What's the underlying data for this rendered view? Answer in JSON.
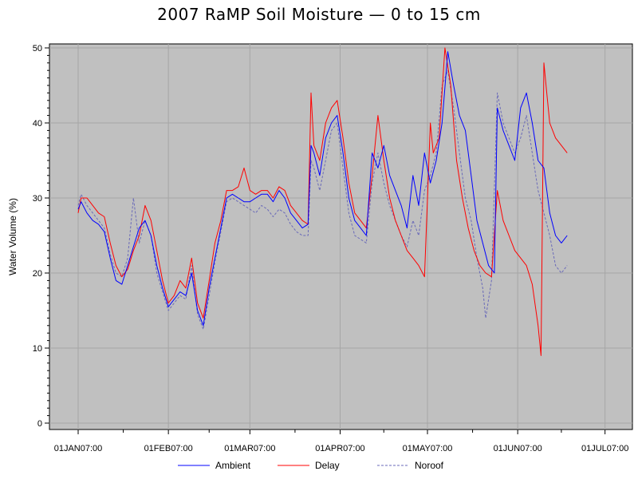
{
  "chart_data": {
    "type": "line",
    "title": "2007 RaMP Soil Moisture — 0 to 15 cm",
    "xlabel": "",
    "ylabel": "Water Volume (%)",
    "xlim": [
      "2007-01-01",
      "2007-07-01"
    ],
    "ylim": [
      0,
      50
    ],
    "yticks": [
      0,
      10,
      20,
      30,
      40,
      50
    ],
    "xticks": [
      "2007-01-01",
      "2007-02-01",
      "2007-03-01",
      "2007-04-01",
      "2007-05-01",
      "2007-06-01",
      "2007-07-01"
    ],
    "xtick_labels": [
      "01JAN07:00",
      "01FEB07:00",
      "01MAR07:00",
      "01APR07:00",
      "01MAY07:00",
      "01JUN07:00",
      "01JUL07:00"
    ],
    "plot_background": "#c0c0c0",
    "grid": true,
    "legend_position": "bottom",
    "series": [
      {
        "name": "Ambient",
        "color": "#0000ff",
        "style": "solid",
        "x": [
          "2007-01-01",
          "2007-01-02",
          "2007-01-04",
          "2007-01-06",
          "2007-01-08",
          "2007-01-10",
          "2007-01-12",
          "2007-01-14",
          "2007-01-16",
          "2007-01-18",
          "2007-01-20",
          "2007-01-22",
          "2007-01-24",
          "2007-01-26",
          "2007-01-28",
          "2007-01-30",
          "2007-02-01",
          "2007-02-03",
          "2007-02-05",
          "2007-02-07",
          "2007-02-09",
          "2007-02-11",
          "2007-02-13",
          "2007-02-15",
          "2007-02-17",
          "2007-02-19",
          "2007-02-21",
          "2007-02-23",
          "2007-02-25",
          "2007-02-27",
          "2007-03-01",
          "2007-03-03",
          "2007-03-05",
          "2007-03-07",
          "2007-03-09",
          "2007-03-11",
          "2007-03-13",
          "2007-03-15",
          "2007-03-17",
          "2007-03-19",
          "2007-03-21",
          "2007-03-22",
          "2007-03-23",
          "2007-03-25",
          "2007-03-27",
          "2007-03-29",
          "2007-03-31",
          "2007-04-02",
          "2007-04-04",
          "2007-04-06",
          "2007-04-08",
          "2007-04-10",
          "2007-04-12",
          "2007-04-14",
          "2007-04-16",
          "2007-04-18",
          "2007-04-20",
          "2007-04-22",
          "2007-04-24",
          "2007-04-26",
          "2007-04-28",
          "2007-04-30",
          "2007-05-02",
          "2007-05-04",
          "2007-05-06",
          "2007-05-08",
          "2007-05-10",
          "2007-05-12",
          "2007-05-14",
          "2007-05-16",
          "2007-05-18",
          "2007-05-20",
          "2007-05-22",
          "2007-05-24",
          "2007-05-25",
          "2007-05-27",
          "2007-05-29",
          "2007-05-31",
          "2007-06-02",
          "2007-06-04",
          "2007-06-06",
          "2007-06-08",
          "2007-06-10",
          "2007-06-12",
          "2007-06-14",
          "2007-06-16",
          "2007-06-18"
        ],
        "values": [
          28.5,
          29.5,
          28.0,
          27.0,
          26.5,
          25.5,
          22.0,
          19.0,
          18.5,
          21.0,
          23.5,
          26.0,
          27.0,
          25.0,
          21.0,
          18.0,
          15.5,
          16.5,
          17.5,
          17.0,
          20.0,
          15.0,
          13.0,
          18.0,
          22.0,
          26.0,
          30.0,
          30.5,
          30.0,
          29.5,
          29.5,
          30.0,
          30.5,
          30.5,
          29.5,
          31.0,
          30.0,
          28.0,
          27.0,
          26.0,
          26.5,
          37.0,
          36.0,
          33.0,
          38.0,
          40.0,
          41.0,
          36.0,
          30.0,
          27.0,
          26.0,
          25.0,
          36.0,
          34.0,
          37.0,
          33.0,
          31.0,
          29.0,
          26.0,
          33.0,
          29.0,
          36.0,
          32.0,
          35.0,
          40.0,
          49.5,
          45.0,
          41.0,
          39.0,
          33.0,
          27.0,
          24.0,
          21.0,
          20.0,
          42.0,
          39.0,
          37.0,
          35.0,
          42.0,
          44.0,
          40.0,
          35.0,
          34.0,
          28.0,
          25.0,
          24.0,
          25.0
        ]
      },
      {
        "name": "Delay",
        "color": "#ff0000",
        "style": "solid",
        "x": [
          "2007-01-01",
          "2007-01-02",
          "2007-01-04",
          "2007-01-06",
          "2007-01-08",
          "2007-01-10",
          "2007-01-12",
          "2007-01-14",
          "2007-01-16",
          "2007-01-18",
          "2007-01-20",
          "2007-01-22",
          "2007-01-24",
          "2007-01-26",
          "2007-01-28",
          "2007-01-30",
          "2007-02-01",
          "2007-02-03",
          "2007-02-05",
          "2007-02-07",
          "2007-02-09",
          "2007-02-11",
          "2007-02-13",
          "2007-02-15",
          "2007-02-17",
          "2007-02-19",
          "2007-02-21",
          "2007-02-23",
          "2007-02-25",
          "2007-02-27",
          "2007-03-01",
          "2007-03-03",
          "2007-03-05",
          "2007-03-07",
          "2007-03-09",
          "2007-03-11",
          "2007-03-13",
          "2007-03-15",
          "2007-03-17",
          "2007-03-19",
          "2007-03-21",
          "2007-03-22",
          "2007-03-23",
          "2007-03-25",
          "2007-03-27",
          "2007-03-29",
          "2007-03-31",
          "2007-04-02",
          "2007-04-04",
          "2007-04-06",
          "2007-04-08",
          "2007-04-10",
          "2007-04-12",
          "2007-04-14",
          "2007-04-16",
          "2007-04-18",
          "2007-04-20",
          "2007-04-22",
          "2007-04-24",
          "2007-04-26",
          "2007-04-28",
          "2007-04-30",
          "2007-05-02",
          "2007-05-03",
          "2007-05-05",
          "2007-05-07",
          "2007-05-09",
          "2007-05-11",
          "2007-05-13",
          "2007-05-15",
          "2007-05-17",
          "2007-05-19",
          "2007-05-21",
          "2007-05-23",
          "2007-05-25",
          "2007-05-27",
          "2007-05-29",
          "2007-05-31",
          "2007-06-02",
          "2007-06-04",
          "2007-06-06",
          "2007-06-08",
          "2007-06-09",
          "2007-06-10",
          "2007-06-11",
          "2007-06-12",
          "2007-06-14",
          "2007-06-16",
          "2007-06-18"
        ],
        "values": [
          28.0,
          30.0,
          30.0,
          29.0,
          28.0,
          27.5,
          24.0,
          21.0,
          19.5,
          20.5,
          23.0,
          25.0,
          29.0,
          27.0,
          23.0,
          19.0,
          16.0,
          17.0,
          19.0,
          18.0,
          22.0,
          16.0,
          14.0,
          19.0,
          24.0,
          27.0,
          31.0,
          31.0,
          31.5,
          34.0,
          31.0,
          30.5,
          31.0,
          31.0,
          30.0,
          31.5,
          31.0,
          29.0,
          28.0,
          27.0,
          26.5,
          44.0,
          37.0,
          35.0,
          40.0,
          42.0,
          43.0,
          38.0,
          32.0,
          28.0,
          27.0,
          26.0,
          33.0,
          41.0,
          35.0,
          30.0,
          27.0,
          25.0,
          23.0,
          22.0,
          21.0,
          19.5,
          40.0,
          36.0,
          38.0,
          50.0,
          45.0,
          35.0,
          30.0,
          26.0,
          23.0,
          21.0,
          20.0,
          19.5,
          31.0,
          27.0,
          25.0,
          23.0,
          22.0,
          21.0,
          18.5,
          13.0,
          9.0,
          48.0,
          44.0,
          40.0,
          38.0,
          37.0,
          36.0
        ]
      },
      {
        "name": "Noroof",
        "color": "#6a6ab8",
        "style": "dashed",
        "x": [
          "2007-01-01",
          "2007-01-02",
          "2007-01-04",
          "2007-01-06",
          "2007-01-08",
          "2007-01-10",
          "2007-01-12",
          "2007-01-14",
          "2007-01-16",
          "2007-01-18",
          "2007-01-20",
          "2007-01-22",
          "2007-01-24",
          "2007-01-26",
          "2007-01-28",
          "2007-01-30",
          "2007-02-01",
          "2007-02-03",
          "2007-02-05",
          "2007-02-07",
          "2007-02-09",
          "2007-02-11",
          "2007-02-13",
          "2007-02-15",
          "2007-02-17",
          "2007-02-19",
          "2007-02-21",
          "2007-02-23",
          "2007-02-25",
          "2007-02-27",
          "2007-03-01",
          "2007-03-03",
          "2007-03-05",
          "2007-03-07",
          "2007-03-09",
          "2007-03-11",
          "2007-03-13",
          "2007-03-15",
          "2007-03-17",
          "2007-03-19",
          "2007-03-21",
          "2007-03-22",
          "2007-03-23",
          "2007-03-25",
          "2007-03-27",
          "2007-03-29",
          "2007-03-31",
          "2007-04-02",
          "2007-04-04",
          "2007-04-06",
          "2007-04-08",
          "2007-04-10",
          "2007-04-12",
          "2007-04-14",
          "2007-04-16",
          "2007-04-18",
          "2007-04-20",
          "2007-04-22",
          "2007-04-24",
          "2007-04-26",
          "2007-04-28",
          "2007-04-30",
          "2007-05-02",
          "2007-05-04",
          "2007-05-06",
          "2007-05-08",
          "2007-05-10",
          "2007-05-12",
          "2007-05-14",
          "2007-05-16",
          "2007-05-18",
          "2007-05-20",
          "2007-05-21",
          "2007-05-23",
          "2007-05-25",
          "2007-05-27",
          "2007-05-29",
          "2007-05-31",
          "2007-06-02",
          "2007-06-04",
          "2007-06-06",
          "2007-06-08",
          "2007-06-10",
          "2007-06-12",
          "2007-06-14",
          "2007-06-16",
          "2007-06-18"
        ],
        "values": [
          29.0,
          30.5,
          29.0,
          28.0,
          27.0,
          26.0,
          22.5,
          20.0,
          19.5,
          22.0,
          30.0,
          24.0,
          27.0,
          25.0,
          20.0,
          17.5,
          15.0,
          16.0,
          17.0,
          16.5,
          21.0,
          14.5,
          12.5,
          17.0,
          21.5,
          25.5,
          29.5,
          30.0,
          29.5,
          29.0,
          28.5,
          28.0,
          29.0,
          28.5,
          27.5,
          28.5,
          28.0,
          26.5,
          25.5,
          25.0,
          25.0,
          35.0,
          34.0,
          31.0,
          35.0,
          39.0,
          40.0,
          34.0,
          28.0,
          25.0,
          24.5,
          24.0,
          32.0,
          36.0,
          32.0,
          29.0,
          27.0,
          25.0,
          23.5,
          27.0,
          25.0,
          31.0,
          33.0,
          36.0,
          45.0,
          47.0,
          42.0,
          36.0,
          30.0,
          27.0,
          22.0,
          18.0,
          14.0,
          19.0,
          44.0,
          40.0,
          38.0,
          36.0,
          38.0,
          41.0,
          36.0,
          31.0,
          28.0,
          25.0,
          21.0,
          20.0,
          21.0
        ]
      }
    ]
  }
}
